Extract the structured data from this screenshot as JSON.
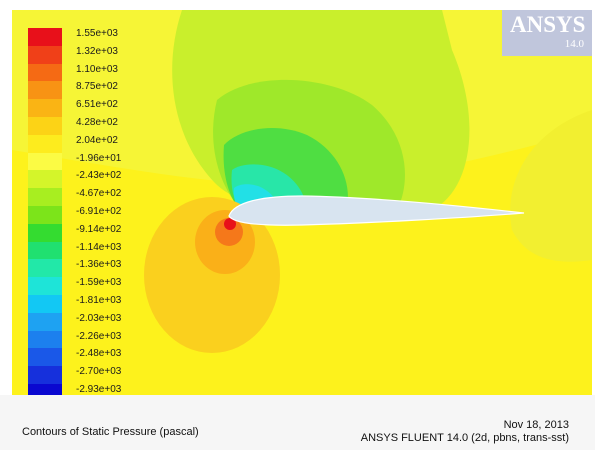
{
  "legend": {
    "labels": [
      "1.55e+03",
      "1.32e+03",
      "1.10e+03",
      "8.75e+02",
      "6.51e+02",
      "4.28e+02",
      "2.04e+02",
      "-1.96e+01",
      "-2.43e+02",
      "-4.67e+02",
      "-6.91e+02",
      "-9.14e+02",
      "-1.14e+03",
      "-1.36e+03",
      "-1.59e+03",
      "-1.81e+03",
      "-2.03e+03",
      "-2.26e+03",
      "-2.48e+03",
      "-2.70e+03",
      "-2.93e+03"
    ],
    "colors": [
      "#e8101a",
      "#f04018",
      "#f56a14",
      "#f89314",
      "#fab414",
      "#fcd316",
      "#fdec1e",
      "#fbfb44",
      "#d4f52a",
      "#a8ee20",
      "#7ce41a",
      "#34dc30",
      "#20e070",
      "#22e8a8",
      "#1ee4d8",
      "#12c8f4",
      "#1ea2f2",
      "#1c80ee",
      "#1a58e8",
      "#1630dc",
      "#0a08d0"
    ]
  },
  "logo": {
    "name": "ANSYS",
    "version": "14.0"
  },
  "footer": {
    "caption": "Contours of Static Pressure (pascal)",
    "date": "Nov 18, 2013",
    "solver": "ANSYS FLUENT 14.0 (2d, pbns, trans-sst)"
  }
}
